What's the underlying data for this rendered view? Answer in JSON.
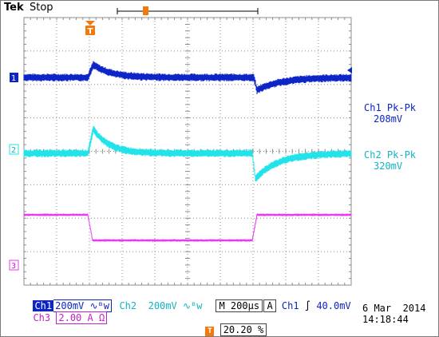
{
  "header": {
    "brand": "Tek",
    "state": "Stop"
  },
  "colors": {
    "ch1": "#0d24c6",
    "ch2": "#21e3e9",
    "ch3": "#ea3aef",
    "trigger": "#f07a10",
    "grid": "#8c8c8c"
  },
  "markers": {
    "ch1": "1",
    "ch2": "2",
    "ch3": "3",
    "trigger": "T"
  },
  "measurements": {
    "ch1": {
      "label": "Ch1 Pk-Pk",
      "value": "208mV"
    },
    "ch2": {
      "label": "Ch2 Pk-Pk",
      "value": "320mV"
    }
  },
  "channels": {
    "ch1": {
      "name": "Ch1",
      "scale": "200mV",
      "coupling": "∿ᴮw"
    },
    "ch2": {
      "name": "Ch2",
      "scale": "200mV",
      "coupling": "∿ᴮw"
    },
    "ch3": {
      "name": "Ch3",
      "scale": "2.00 A",
      "unit": "Ω"
    }
  },
  "timebase": {
    "prefix": "M",
    "value": "200µs"
  },
  "trigger": {
    "mode": "A",
    "source": "Ch1",
    "slope": "∫",
    "level": "40.0mV",
    "position": "20.20 %"
  },
  "datetime": {
    "date": "6 Mar  2014",
    "time": "14:18:44"
  }
}
